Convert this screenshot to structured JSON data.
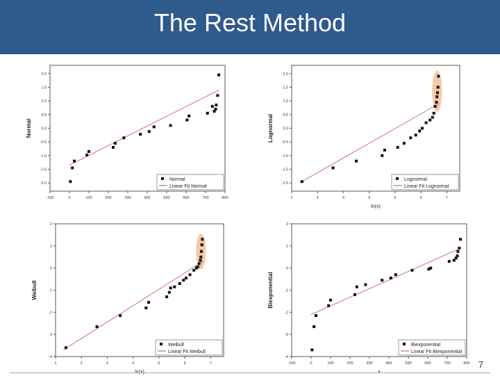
{
  "slide": {
    "title": "The Rest Method",
    "page_number": "7"
  },
  "colors": {
    "title_bar": "#2f5a8c",
    "points": "#111111",
    "fit_line": "#c0504d",
    "highlight": "#f4b183"
  },
  "chart_data": [
    {
      "type": "scatter",
      "title": "",
      "xlabel": "",
      "ylabel": "Normal",
      "xlim": [
        -100,
        800
      ],
      "ylim": [
        -2.3,
        2.3
      ],
      "xticks": [
        "-100",
        "0",
        "100",
        "200",
        "300",
        "400",
        "500",
        "600",
        "700",
        "800"
      ],
      "yticks": [
        "-2.0",
        "-1.5",
        "-1.0",
        "-0.5",
        "0.0",
        "0.5",
        "1.0",
        "1.5",
        "2.0"
      ],
      "legend": {
        "position": "bottom-right",
        "points_label": "Normal",
        "line_label": "Linear Fit Normal"
      },
      "highlight": false,
      "series": [
        {
          "x": [
            5,
            15,
            25,
            90,
            100,
            225,
            235,
            280,
            365,
            410,
            435,
            520,
            605,
            615,
            710,
            735,
            745,
            752,
            755,
            762,
            768
          ],
          "y": [
            -1.95,
            -1.45,
            -1.2,
            -0.98,
            -0.85,
            -0.7,
            -0.55,
            -0.35,
            -0.22,
            -0.12,
            0.05,
            0.1,
            0.3,
            0.45,
            0.55,
            0.8,
            0.62,
            0.7,
            0.85,
            1.2,
            1.95
          ]
        }
      ],
      "fit": {
        "x": [
          0,
          770
        ],
        "y": [
          -1.35,
          1.4
        ]
      }
    },
    {
      "type": "scatter",
      "title": "",
      "xlabel": "ln(x)",
      "ylabel": "Lognormal",
      "xlim": [
        1,
        7.5
      ],
      "ylim": [
        -2.3,
        2.3
      ],
      "xticks": [
        "1",
        "2",
        "3",
        "4",
        "5",
        "6",
        "7"
      ],
      "yticks": [
        "-2.0",
        "-1.5",
        "-1.0",
        "-0.5",
        "0.0",
        "0.5",
        "1.0",
        "1.5",
        "2.0"
      ],
      "legend": {
        "position": "bottom-right",
        "points_label": "Lognormal",
        "line_label": "Linear Fit Lognormal"
      },
      "highlight": true,
      "series": [
        {
          "x": [
            1.4,
            2.6,
            3.5,
            4.5,
            4.6,
            5.1,
            5.35,
            5.6,
            5.8,
            5.95,
            6.05,
            6.2,
            6.35,
            6.45,
            6.5,
            6.55,
            6.6,
            6.62,
            6.64,
            6.66,
            6.68
          ],
          "y": [
            -1.95,
            -1.45,
            -1.2,
            -1.0,
            -0.8,
            -0.7,
            -0.55,
            -0.35,
            -0.25,
            -0.1,
            0.0,
            0.2,
            0.3,
            0.4,
            0.55,
            0.8,
            0.95,
            1.15,
            1.3,
            1.5,
            1.9
          ]
        }
      ],
      "fit": {
        "x": [
          1.3,
          6.7
        ],
        "y": [
          -2.0,
          0.9
        ]
      }
    },
    {
      "type": "scatter",
      "title": "",
      "xlabel": "ln(x)",
      "ylabel": "Weibull",
      "xlim": [
        1,
        7.5
      ],
      "ylim": [
        -4,
        2
      ],
      "xticks": [
        "1",
        "2",
        "3",
        "4",
        "5",
        "6",
        "7"
      ],
      "yticks": [
        "-4",
        "-3",
        "-2",
        "-1",
        "0",
        "1",
        "2"
      ],
      "legend": {
        "position": "bottom-right",
        "points_label": "Weibull",
        "line_label": "Linear Fit Weibull"
      },
      "highlight": true,
      "series": [
        {
          "x": [
            1.4,
            2.6,
            3.5,
            4.5,
            4.6,
            5.3,
            5.4,
            5.45,
            5.6,
            5.8,
            5.95,
            6.05,
            6.2,
            6.35,
            6.45,
            6.5,
            6.55,
            6.6,
            6.62,
            6.64,
            6.66,
            6.68
          ],
          "y": [
            -3.6,
            -2.65,
            -2.15,
            -1.8,
            -1.55,
            -1.3,
            -1.1,
            -0.9,
            -0.85,
            -0.7,
            -0.55,
            -0.45,
            -0.3,
            -0.1,
            0.0,
            0.05,
            0.2,
            0.35,
            0.5,
            0.75,
            1.05,
            1.3
          ]
        }
      ],
      "fit": {
        "x": [
          1.3,
          6.7
        ],
        "y": [
          -3.7,
          0.3
        ]
      }
    },
    {
      "type": "scatter",
      "title": "",
      "xlabel": "x",
      "ylabel": "Biexponential",
      "xlim": [
        -100,
        800
      ],
      "ylim": [
        -4,
        2
      ],
      "xticks": [
        "-100",
        "0",
        "100",
        "200",
        "300",
        "400",
        "500",
        "600",
        "700",
        "800"
      ],
      "yticks": [
        "-4",
        "-3",
        "-2",
        "-1",
        "0",
        "1",
        "2"
      ],
      "legend": {
        "position": "bottom-right",
        "points_label": "Biexponential",
        "line_label": "Linear Fit Biexponential"
      },
      "highlight": false,
      "series": [
        {
          "x": [
            5,
            15,
            25,
            90,
            100,
            225,
            235,
            280,
            365,
            410,
            435,
            520,
            605,
            615,
            710,
            735,
            745,
            752,
            755,
            762,
            768
          ],
          "y": [
            -3.7,
            -2.65,
            -2.15,
            -1.7,
            -1.45,
            -1.2,
            -0.85,
            -0.75,
            -0.55,
            -0.45,
            -0.3,
            -0.1,
            -0.05,
            0.0,
            0.3,
            0.35,
            0.45,
            0.55,
            0.75,
            0.9,
            1.3
          ]
        }
      ],
      "fit": {
        "x": [
          0,
          770
        ],
        "y": [
          -2.1,
          0.9
        ]
      }
    }
  ]
}
